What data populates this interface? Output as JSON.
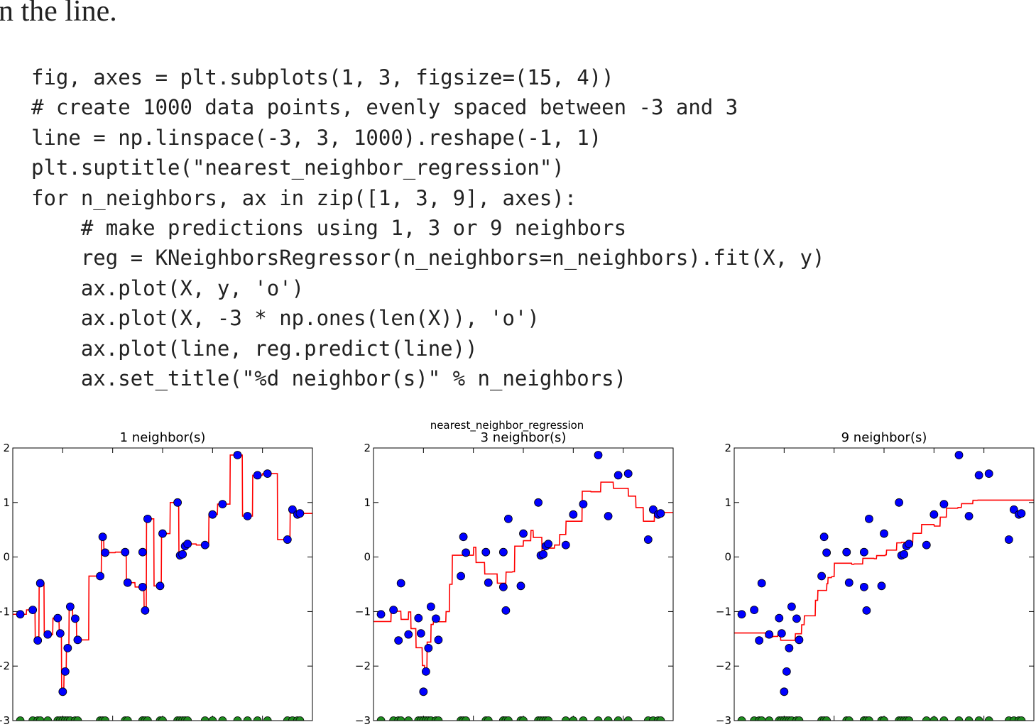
{
  "prose": {
    "text": "n the line."
  },
  "code": {
    "lines": [
      "fig, axes = plt.subplots(1, 3, figsize=(15, 4))",
      "# create 1000 data points, evenly spaced between -3 and 3",
      "line = np.linspace(-3, 3, 1000).reshape(-1, 1)",
      "plt.suptitle(\"nearest_neighbor_regression\")",
      "for n_neighbors, ax in zip([1, 3, 9], axes):",
      "    # make predictions using 1, 3 or 9 neighbors",
      "    reg = KNeighborsRegressor(n_neighbors=n_neighbors).fit(X, y)",
      "    ax.plot(X, y, 'o')",
      "    ax.plot(X, -3 * np.ones(len(X)), 'o')",
      "    ax.plot(line, reg.predict(line))",
      "    ax.set_title(\"%d neighbor(s)\" % n_neighbors)"
    ]
  },
  "figure": {
    "suptitle": "nearest_neighbor_regression"
  },
  "colors": {
    "points": "#0000ff",
    "baseline_points": "#1e8c1e",
    "prediction": "#ff0000"
  },
  "chart_data": [
    {
      "type": "scatter+line",
      "title": "1 neighbor(s)",
      "xlim": [
        -3,
        3
      ],
      "ylim": [
        -3,
        2
      ],
      "yticks": [
        2,
        1,
        0,
        -1,
        -2,
        -3
      ],
      "ytick_labels": [
        "2",
        "1",
        "0",
        "−1",
        "−2",
        "−3"
      ],
      "points": {
        "x": [
          -2.85,
          -2.6,
          -2.5,
          -2.45,
          -2.3,
          -2.1,
          -2.05,
          -2,
          -1.95,
          -1.9,
          -1.85,
          -1.75,
          -1.7,
          -1.25,
          -1.2,
          -1.15,
          -0.75,
          -0.7,
          -0.4,
          -0.4,
          -0.35,
          -0.3,
          -0.05,
          0,
          0.3,
          0.35,
          0.4,
          0.45,
          0.5,
          0.85,
          1.0,
          1.2,
          1.5,
          1.7,
          1.9,
          2.1,
          2.5,
          2.6,
          2.7,
          2.75
        ],
        "y": [
          -1.05,
          -0.97,
          -1.53,
          -0.48,
          -1.42,
          -1.12,
          -1.4,
          -2.47,
          -2.1,
          -1.67,
          -0.91,
          -1.13,
          -1.52,
          -0.35,
          0.37,
          0.08,
          0.09,
          -0.47,
          -0.55,
          0.09,
          -0.98,
          0.7,
          -0.53,
          0.43,
          1.0,
          0.03,
          0.05,
          0.2,
          0.24,
          0.22,
          0.78,
          0.97,
          1.87,
          0.75,
          1.5,
          1.53,
          0.32,
          0.87,
          0.78,
          0.8
        ]
      },
      "baseline": {
        "y": -3
      },
      "prediction": {
        "x": [
          -3,
          3
        ],
        "step_neighbors": 1
      }
    },
    {
      "type": "scatter+line",
      "title": "3 neighbor(s)",
      "xlim": [
        -3,
        3
      ],
      "ylim": [
        -3,
        2
      ],
      "yticks": [
        2,
        1,
        0,
        -1,
        -2,
        -3
      ],
      "ytick_labels": [
        "2",
        "1",
        "0",
        "−1",
        "−2",
        "−3"
      ],
      "points": {
        "x": [
          -2.85,
          -2.6,
          -2.5,
          -2.45,
          -2.3,
          -2.1,
          -2.05,
          -2,
          -1.95,
          -1.9,
          -1.85,
          -1.75,
          -1.7,
          -1.25,
          -1.2,
          -1.15,
          -0.75,
          -0.7,
          -0.4,
          -0.4,
          -0.35,
          -0.3,
          -0.05,
          0,
          0.3,
          0.35,
          0.4,
          0.45,
          0.5,
          0.85,
          1.0,
          1.2,
          1.5,
          1.7,
          1.9,
          2.1,
          2.5,
          2.6,
          2.7,
          2.75
        ],
        "y": [
          -1.05,
          -0.97,
          -1.53,
          -0.48,
          -1.42,
          -1.12,
          -1.4,
          -2.47,
          -2.1,
          -1.67,
          -0.91,
          -1.13,
          -1.52,
          -0.35,
          0.37,
          0.08,
          0.09,
          -0.47,
          -0.55,
          0.09,
          -0.98,
          0.7,
          -0.53,
          0.43,
          1.0,
          0.03,
          0.05,
          0.2,
          0.24,
          0.22,
          0.78,
          0.97,
          1.87,
          0.75,
          1.5,
          1.53,
          0.32,
          0.87,
          0.78,
          0.8
        ]
      },
      "baseline": {
        "y": -3
      },
      "prediction": {
        "x": [
          -3,
          3
        ],
        "step_neighbors": 3
      }
    },
    {
      "type": "scatter+line",
      "title": "9 neighbor(s)",
      "xlim": [
        -3,
        3
      ],
      "ylim": [
        -3,
        2
      ],
      "yticks": [
        2,
        1,
        0,
        -1,
        -2,
        -3
      ],
      "ytick_labels": [
        "2",
        "1",
        "0",
        "−1",
        "−2",
        "−3"
      ],
      "points": {
        "x": [
          -2.85,
          -2.6,
          -2.5,
          -2.45,
          -2.3,
          -2.1,
          -2.05,
          -2,
          -1.95,
          -1.9,
          -1.85,
          -1.75,
          -1.7,
          -1.25,
          -1.2,
          -1.15,
          -0.75,
          -0.7,
          -0.4,
          -0.4,
          -0.35,
          -0.3,
          -0.05,
          0,
          0.3,
          0.35,
          0.4,
          0.45,
          0.5,
          0.85,
          1.0,
          1.2,
          1.5,
          1.7,
          1.9,
          2.1,
          2.5,
          2.6,
          2.7,
          2.75
        ],
        "y": [
          -1.05,
          -0.97,
          -1.53,
          -0.48,
          -1.42,
          -1.12,
          -1.4,
          -2.47,
          -2.1,
          -1.67,
          -0.91,
          -1.13,
          -1.52,
          -0.35,
          0.37,
          0.08,
          0.09,
          -0.47,
          -0.55,
          0.09,
          -0.98,
          0.7,
          -0.53,
          0.43,
          1.0,
          0.03,
          0.05,
          0.2,
          0.24,
          0.22,
          0.78,
          0.97,
          1.87,
          0.75,
          1.5,
          1.53,
          0.32,
          0.87,
          0.78,
          0.8
        ]
      },
      "baseline": {
        "y": -3
      },
      "prediction": {
        "x": [
          -3,
          3
        ],
        "step_neighbors": 9
      }
    }
  ]
}
